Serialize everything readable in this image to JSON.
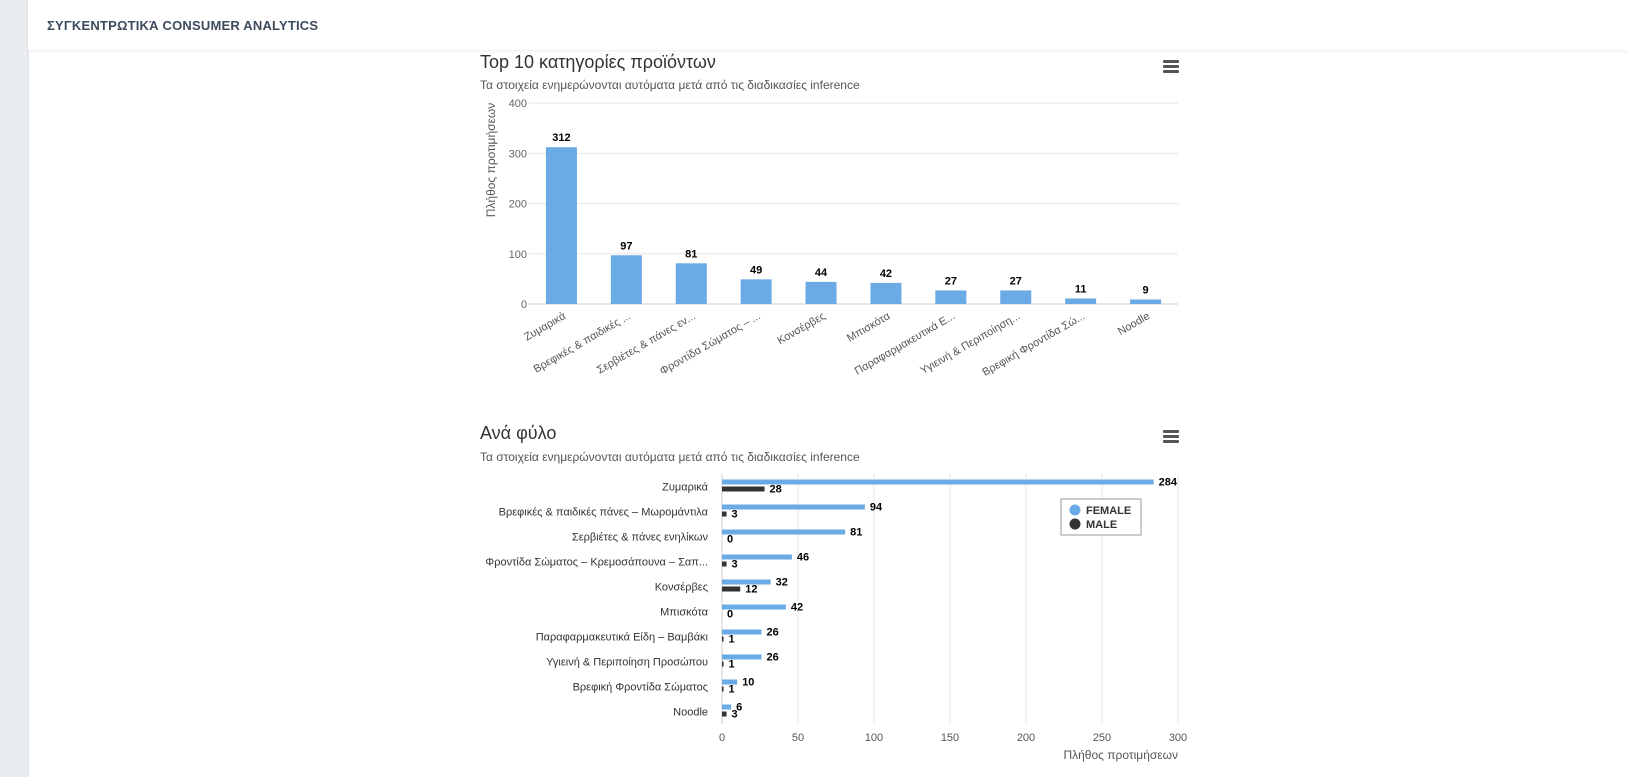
{
  "page": {
    "title": "ΣΥΓΚΕΝΤΡΩΤΙΚΆ CONSUMER ANALYTICS"
  },
  "charts": {
    "top10": {
      "title": "Top 10 κατηγορίες προϊόντων",
      "subtitle": "Τα στοιχεία ενημερώνονται αυτόματα μετά από τις διαδικασίες inference",
      "menu_icon": "hamburger-menu-icon"
    },
    "gender": {
      "title": "Ανά φύλο",
      "subtitle": "Τα στοιχεία ενημερώνονται αυτόματα μετά από τις διαδικασίες inference",
      "menu_icon": "hamburger-menu-icon"
    }
  },
  "colors": {
    "blue": "#6aabe6",
    "dark": "#333333"
  },
  "chart_data": [
    {
      "type": "bar",
      "title": "Top 10 κατηγορίες προϊόντων",
      "subtitle": "Τα στοιχεία ενημερώνονται αυτόματα μετά από τις διαδικασίες inference",
      "xlabel": "",
      "ylabel": "Πλήθος προτιμήσεων",
      "ylim": [
        0,
        400
      ],
      "yticks": [
        0,
        100,
        200,
        300,
        400
      ],
      "categories": [
        "Ζυμαρικά",
        "Βρεφικές & παιδικές ...",
        "Σερβιέτες & πάνες εν...",
        "Φροντίδα Σώματος – ...",
        "Κονσέρβες",
        "Μπισκότα",
        "Παραφαρμακευτικά Ε...",
        "Υγιεινή & Περιποίηση...",
        "Βρεφική Φροντίδα Σώ...",
        "Noodle"
      ],
      "values": [
        312,
        97,
        81,
        49,
        44,
        42,
        27,
        27,
        11,
        9
      ],
      "grid": true
    },
    {
      "type": "bar",
      "orientation": "horizontal",
      "title": "Ανά φύλο",
      "subtitle": "Τα στοιχεία ενημερώνονται αυτόματα μετά από τις διαδικασίες inference",
      "xlabel": "Πλήθος προτιμήσεων",
      "ylabel": "",
      "xlim": [
        0,
        300
      ],
      "xticks": [
        0,
        50,
        100,
        150,
        200,
        250,
        300
      ],
      "categories": [
        "Ζυμαρικά",
        "Βρεφικές & παιδικές πάνες – Μωρομάντιλα",
        "Σερβιέτες & πάνες ενηλίκων",
        "Φροντίδα Σώματος – Κρεμοσάπουνα – Σαπ...",
        "Κονσέρβες",
        "Μπισκότα",
        "Παραφαρμακευτικά Είδη – Βαμβάκι",
        "Υγιεινή & Περιποίηση Προσώπου",
        "Βρεφική Φροντίδα Σώματος",
        "Noodle"
      ],
      "series": [
        {
          "name": "FEMALE",
          "values": [
            284,
            94,
            81,
            46,
            32,
            42,
            26,
            26,
            10,
            6
          ]
        },
        {
          "name": "MALE",
          "values": [
            28,
            3,
            0,
            3,
            12,
            0,
            1,
            1,
            1,
            3
          ]
        }
      ],
      "legend": "top-right",
      "grid": true
    }
  ]
}
